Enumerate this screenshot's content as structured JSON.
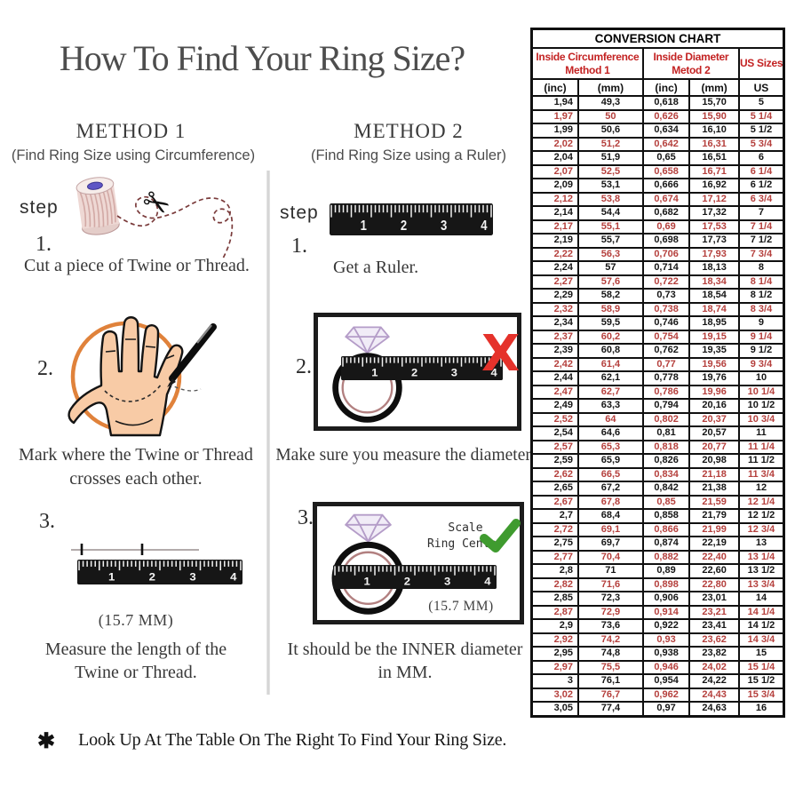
{
  "title": "How To Find Your Ring Size?",
  "footnote": {
    "bullet": "✱",
    "text": "Look Up At The Table On The Right To Find Your Ring Size."
  },
  "icons": {
    "scissors": "✂",
    "x_mark": "X"
  },
  "ruler_numbers": [
    "1",
    "2",
    "3",
    "4"
  ],
  "colors": {
    "table_red": "#b5403d",
    "header_red": "#c32222",
    "check_green": "#3f9b2f",
    "x_red": "#e5322b",
    "hand_circle_orange": "#e0823b"
  },
  "method1": {
    "heading": "METHOD 1",
    "subheading": "(Find Ring Size using Circumference)",
    "step_label": "step",
    "step1": {
      "number": "1.",
      "caption": "Cut a piece of Twine or Thread."
    },
    "step2": {
      "number": "2.",
      "caption_line1": "Mark where the Twine or Thread",
      "caption_line2": "crosses each other."
    },
    "step3": {
      "number": "3.",
      "measurement": "(15.7 MM)",
      "caption_line1": "Measure the length of the",
      "caption_line2": "Twine or Thread."
    }
  },
  "method2": {
    "heading": "METHOD 2",
    "subheading": "(Find Ring Size using a Ruler)",
    "step_label": "step",
    "step1": {
      "number": "1.",
      "caption": "Get a Ruler."
    },
    "step2": {
      "number": "2.",
      "caption": "Make sure you measure the diameter."
    },
    "step3": {
      "number": "3.",
      "scale_line1": "Scale",
      "scale_line2": "Ring Center",
      "measurement": "(15.7 MM)",
      "caption_line1": "It should be the INNER diameter",
      "caption_line2": "in MM."
    }
  },
  "conversion_chart": {
    "title": "CONVERSION CHART",
    "groups": [
      {
        "line1": "Inside Circumference",
        "line2": "Method 1"
      },
      {
        "line1": "Inside Diameter",
        "line2": "Metod 2"
      },
      {
        "line1": "US Sizes",
        "line2": ""
      }
    ],
    "subheaders": [
      "(inc)",
      "(mm)",
      "(inc)",
      "(mm)",
      "US"
    ],
    "rows": [
      [
        "1,94",
        "49,3",
        "0,618",
        "15,70",
        "5"
      ],
      [
        "1,97",
        "50",
        "0,626",
        "15,90",
        "5 1/4"
      ],
      [
        "1,99",
        "50,6",
        "0,634",
        "16,10",
        "5 1/2"
      ],
      [
        "2,02",
        "51,2",
        "0,642",
        "16,31",
        "5 3/4"
      ],
      [
        "2,04",
        "51,9",
        "0,65",
        "16,51",
        "6"
      ],
      [
        "2,07",
        "52,5",
        "0,658",
        "16,71",
        "6 1/4"
      ],
      [
        "2,09",
        "53,1",
        "0,666",
        "16,92",
        "6 1/2"
      ],
      [
        "2,12",
        "53,8",
        "0,674",
        "17,12",
        "6 3/4"
      ],
      [
        "2,14",
        "54,4",
        "0,682",
        "17,32",
        "7"
      ],
      [
        "2,17",
        "55,1",
        "0,69",
        "17,53",
        "7 1/4"
      ],
      [
        "2,19",
        "55,7",
        "0,698",
        "17,73",
        "7 1/2"
      ],
      [
        "2,22",
        "56,3",
        "0,706",
        "17,93",
        "7 3/4"
      ],
      [
        "2,24",
        "57",
        "0,714",
        "18,13",
        "8"
      ],
      [
        "2,27",
        "57,6",
        "0,722",
        "18,34",
        "8 1/4"
      ],
      [
        "2,29",
        "58,2",
        "0,73",
        "18,54",
        "8 1/2"
      ],
      [
        "2,32",
        "58,9",
        "0,738",
        "18,74",
        "8 3/4"
      ],
      [
        "2,34",
        "59,5",
        "0,746",
        "18,95",
        "9"
      ],
      [
        "2,37",
        "60,2",
        "0,754",
        "19,15",
        "9 1/4"
      ],
      [
        "2,39",
        "60,8",
        "0,762",
        "19,35",
        "9 1/2"
      ],
      [
        "2,42",
        "61,4",
        "0,77",
        "19,56",
        "9 3/4"
      ],
      [
        "2,44",
        "62,1",
        "0,778",
        "19,76",
        "10"
      ],
      [
        "2,47",
        "62,7",
        "0,786",
        "19,96",
        "10 1/4"
      ],
      [
        "2,49",
        "63,3",
        "0,794",
        "20,16",
        "10 1/2"
      ],
      [
        "2,52",
        "64",
        "0,802",
        "20,37",
        "10 3/4"
      ],
      [
        "2,54",
        "64,6",
        "0,81",
        "20,57",
        "11"
      ],
      [
        "2,57",
        "65,3",
        "0,818",
        "20,77",
        "11 1/4"
      ],
      [
        "2,59",
        "65,9",
        "0,826",
        "20,98",
        "11 1/2"
      ],
      [
        "2,62",
        "66,5",
        "0,834",
        "21,18",
        "11 3/4"
      ],
      [
        "2,65",
        "67,2",
        "0,842",
        "21,38",
        "12"
      ],
      [
        "2,67",
        "67,8",
        "0,85",
        "21,59",
        "12 1/4"
      ],
      [
        "2,7",
        "68,4",
        "0,858",
        "21,79",
        "12 1/2"
      ],
      [
        "2,72",
        "69,1",
        "0,866",
        "21,99",
        "12 3/4"
      ],
      [
        "2,75",
        "69,7",
        "0,874",
        "22,19",
        "13"
      ],
      [
        "2,77",
        "70,4",
        "0,882",
        "22,40",
        "13 1/4"
      ],
      [
        "2,8",
        "71",
        "0,89",
        "22,60",
        "13 1/2"
      ],
      [
        "2,82",
        "71,6",
        "0,898",
        "22,80",
        "13 3/4"
      ],
      [
        "2,85",
        "72,3",
        "0,906",
        "23,01",
        "14"
      ],
      [
        "2,87",
        "72,9",
        "0,914",
        "23,21",
        "14 1/4"
      ],
      [
        "2,9",
        "73,6",
        "0,922",
        "23,41",
        "14 1/2"
      ],
      [
        "2,92",
        "74,2",
        "0,93",
        "23,62",
        "14 3/4"
      ],
      [
        "2,95",
        "74,8",
        "0,938",
        "23,82",
        "15"
      ],
      [
        "2,97",
        "75,5",
        "0,946",
        "24,02",
        "15 1/4"
      ],
      [
        "3",
        "76,1",
        "0,954",
        "24,22",
        "15 1/2"
      ],
      [
        "3,02",
        "76,7",
        "0,962",
        "24,43",
        "15 3/4"
      ],
      [
        "3,05",
        "77,4",
        "0,97",
        "24,63",
        "16"
      ]
    ]
  }
}
